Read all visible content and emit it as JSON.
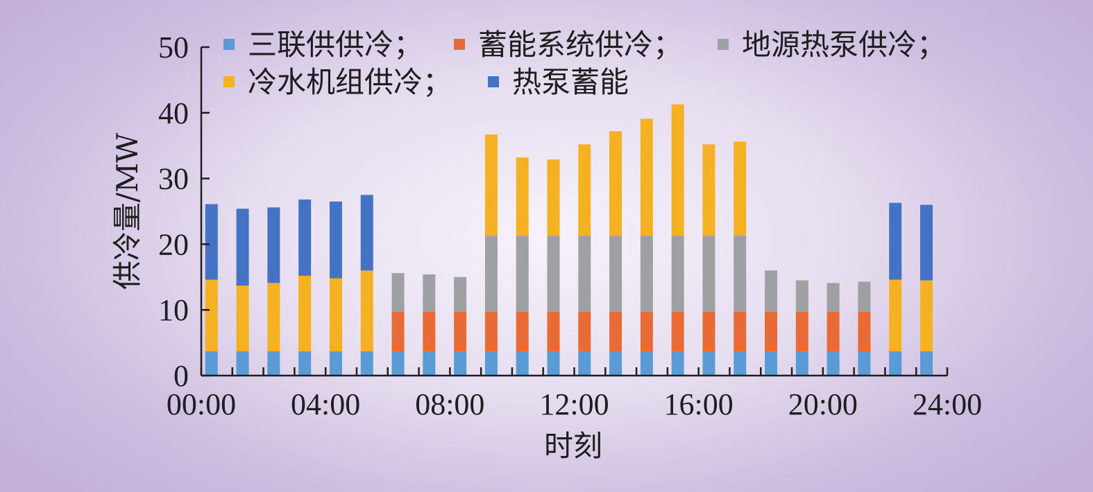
{
  "chart_data": {
    "type": "bar",
    "stacked": true,
    "title": "",
    "xlabel": "时刻",
    "ylabel": "供冷量/MW",
    "ylim": [
      0,
      50
    ],
    "yticks": [
      0,
      10,
      20,
      30,
      40,
      50
    ],
    "xlim": [
      0,
      24
    ],
    "xticks": [
      "00:00",
      "04:00",
      "08:00",
      "12:00",
      "16:00",
      "20:00",
      "24:00"
    ],
    "x": [
      0.33,
      1.33,
      2.33,
      3.33,
      4.33,
      5.33,
      6.33,
      7.33,
      8.33,
      9.33,
      10.33,
      11.33,
      12.33,
      13.33,
      14.33,
      15.33,
      16.33,
      17.33,
      18.33,
      19.33,
      20.33,
      21.33,
      22.33,
      23.33
    ],
    "legend_position": "top",
    "series": [
      {
        "name": "三联供供冷；",
        "color": "#5b9bd5",
        "values": [
          3.7,
          3.7,
          3.7,
          3.7,
          3.7,
          3.7,
          3.7,
          3.7,
          3.7,
          3.7,
          3.7,
          3.7,
          3.7,
          3.7,
          3.7,
          3.7,
          3.7,
          3.7,
          3.7,
          3.7,
          3.7,
          3.7,
          3.7,
          3.7
        ]
      },
      {
        "name": "蓄能系统供冷；",
        "color": "#e86a35",
        "values": [
          0,
          0,
          0,
          0,
          0,
          0,
          6,
          6,
          6,
          6,
          6,
          6,
          6,
          6,
          6,
          6,
          6,
          6,
          6,
          6,
          6,
          6,
          0,
          0
        ]
      },
      {
        "name": "地源热泵供冷；",
        "color": "#9fa0a3",
        "values": [
          0,
          0,
          0,
          0,
          0,
          0,
          5.9,
          5.7,
          5.3,
          11.6,
          11.6,
          11.6,
          11.6,
          11.6,
          11.6,
          11.6,
          11.6,
          11.6,
          6.3,
          4.8,
          4.4,
          4.6,
          0,
          0
        ]
      },
      {
        "name": "冷水机组供冷；",
        "color": "#f4b122",
        "values": [
          10.9,
          10,
          10.4,
          11.5,
          11.1,
          12.3,
          0,
          0,
          0,
          15.4,
          11.9,
          11.6,
          13.9,
          15.9,
          17.8,
          20,
          13.9,
          14.3,
          0,
          0,
          0,
          0,
          10.9,
          10.8
        ]
      },
      {
        "name": "热泵蓄能",
        "color": "#4472c4",
        "values": [
          11.5,
          11.7,
          11.5,
          11.6,
          11.7,
          11.5,
          0,
          0,
          0,
          0,
          0,
          0,
          0,
          0,
          0,
          0,
          0,
          0,
          0,
          0,
          0,
          0,
          11.7,
          11.5
        ]
      }
    ]
  }
}
